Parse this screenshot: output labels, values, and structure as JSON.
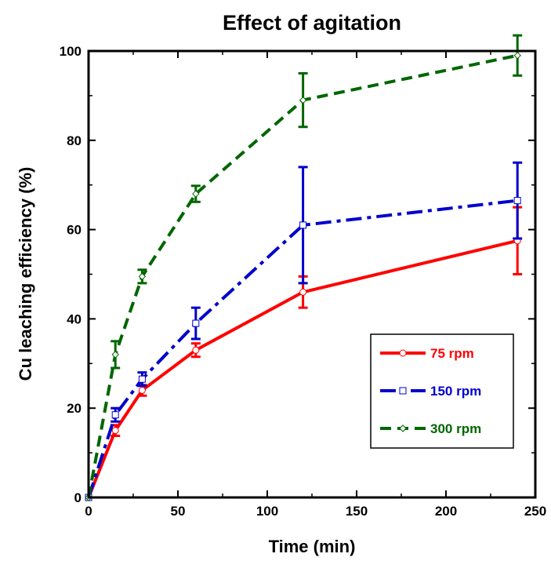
{
  "chart_data": {
    "type": "line",
    "title": "Effect of agitation",
    "xlabel": "Time (min)",
    "ylabel": "Cu leaching efficiency (%)",
    "xlim": [
      0,
      250
    ],
    "ylim": [
      0,
      100
    ],
    "xticks": [
      0,
      50,
      100,
      150,
      200,
      250
    ],
    "yticks": [
      0,
      20,
      40,
      60,
      80,
      100
    ],
    "x_tick_labels": [
      "0",
      "50",
      "100",
      "150",
      "200",
      "250"
    ],
    "y_tick_labels": [
      "0",
      "20",
      "40",
      "60",
      "80",
      "100"
    ],
    "grid": false,
    "legend_position": "bottom-right",
    "series": [
      {
        "name": "75 rpm",
        "color": "#ff0000",
        "line_style": "solid",
        "marker": "circle",
        "x": [
          0,
          15,
          30,
          60,
          120,
          240
        ],
        "y": [
          0,
          15,
          24,
          33,
          46,
          57.5
        ],
        "err": [
          0,
          1.2,
          1.2,
          1.5,
          3.5,
          7.5
        ]
      },
      {
        "name": "150 rpm",
        "color": "#0000cc",
        "line_style": "dashdot",
        "marker": "square",
        "x": [
          0,
          15,
          30,
          60,
          120,
          240
        ],
        "y": [
          0,
          18.5,
          26.5,
          39,
          61,
          66.5
        ],
        "err": [
          0,
          1.5,
          1.5,
          3.5,
          13,
          8.5
        ]
      },
      {
        "name": "300 rpm",
        "color": "#006600",
        "line_style": "dashed",
        "marker": "diamond",
        "x": [
          0,
          15,
          30,
          60,
          120,
          240
        ],
        "y": [
          0,
          32,
          49.5,
          68,
          89,
          99
        ],
        "err": [
          0,
          3,
          1.5,
          1.8,
          6,
          4.5
        ]
      }
    ]
  }
}
